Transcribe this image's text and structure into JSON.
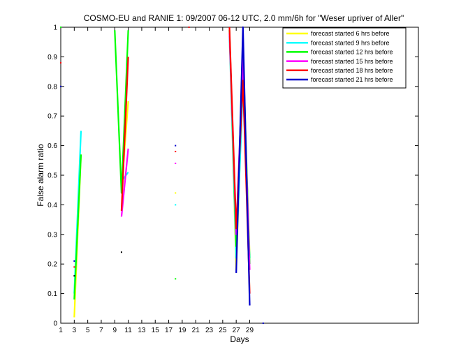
{
  "chart_data": {
    "type": "line",
    "title": "COSMO-EU and RANIE 1: 09/2007 06-12 UTC, 2.0 mm/6h for \"Weser upriver of Aller\"",
    "xlabel": "Days",
    "ylabel": "False alarm ratio",
    "xlim": [
      1,
      54
    ],
    "ylim": [
      0,
      1
    ],
    "xticks": [
      1,
      3,
      5,
      7,
      9,
      11,
      13,
      15,
      17,
      19,
      21,
      23,
      25,
      27,
      29
    ],
    "yticks": [
      0,
      0.1,
      0.2,
      0.3,
      0.4,
      0.5,
      0.6,
      0.7,
      0.8,
      0.9,
      1
    ],
    "legend_position": "top-right",
    "series": [
      {
        "name": "forecast started 6 hrs before",
        "color": "#ffff00",
        "points": [
          [
            3,
            0.02
          ],
          [
            4,
            0.57
          ],
          null,
          [
            10,
            0.45
          ],
          [
            11,
            0.75
          ],
          null,
          [
            26,
            0.99
          ],
          [
            27,
            0.18
          ],
          [
            28,
            0.85
          ],
          [
            29,
            0.23
          ]
        ]
      },
      {
        "name": "forecast started 9 hrs before",
        "color": "#00ffff",
        "points": [
          [
            3,
            0.1
          ],
          [
            4,
            0.65
          ],
          null,
          [
            10,
            0.48
          ],
          [
            11,
            0.51
          ],
          null,
          [
            26,
            0.97
          ],
          [
            27,
            0.22
          ],
          [
            28,
            0.8
          ],
          [
            29,
            0.22
          ]
        ]
      },
      {
        "name": "forecast started 12 hrs before",
        "color": "#00ff00",
        "points": [
          [
            3,
            0.08
          ],
          [
            4,
            0.57
          ],
          null,
          [
            9,
            0.99
          ],
          [
            10,
            0.44
          ],
          [
            11,
            0.99
          ],
          null,
          [
            26,
            0.99
          ],
          [
            27,
            0.26
          ],
          [
            28,
            0.93
          ],
          [
            29,
            0.2
          ]
        ]
      },
      {
        "name": "forecast started 15 hrs before",
        "color": "#ff00ff",
        "points": [
          [
            10,
            0.36
          ],
          [
            11,
            0.59
          ],
          null,
          [
            26,
            0.98
          ],
          [
            27,
            0.3
          ],
          [
            28,
            0.9
          ],
          [
            29,
            0.18
          ]
        ]
      },
      {
        "name": "forecast started 18 hrs before",
        "color": "#ff0000",
        "points": [
          [
            10,
            0.38
          ],
          [
            11,
            0.9
          ],
          null,
          [
            26,
            1.0
          ],
          [
            27,
            0.32
          ],
          [
            28,
            0.82
          ],
          [
            29,
            0.1
          ]
        ]
      },
      {
        "name": "forecast started 21 hrs before",
        "color": "#0000cc",
        "points": [
          [
            27,
            0.17
          ],
          [
            28,
            1.0
          ],
          [
            29,
            0.06
          ]
        ]
      }
    ],
    "isolated_points": [
      {
        "x": 1,
        "y": 0.88,
        "color": "#ff0000"
      },
      {
        "x": 1,
        "y": 0.8,
        "color": "#0000cc"
      },
      {
        "x": 1,
        "y": 1.0,
        "color": "#00ff00"
      },
      {
        "x": 3,
        "y": 0.21,
        "color": "#0000cc"
      },
      {
        "x": 3,
        "y": 0.19,
        "color": "#ff0000"
      },
      {
        "x": 3,
        "y": 0.16,
        "color": "#000000"
      },
      {
        "x": 10,
        "y": 0.24,
        "color": "#000000"
      },
      {
        "x": 18,
        "y": 0.6,
        "color": "#0000cc"
      },
      {
        "x": 18,
        "y": 0.58,
        "color": "#ff0000"
      },
      {
        "x": 18,
        "y": 0.54,
        "color": "#ff00ff"
      },
      {
        "x": 18,
        "y": 0.44,
        "color": "#ffff00"
      },
      {
        "x": 18,
        "y": 0.4,
        "color": "#00ffff"
      },
      {
        "x": 18,
        "y": 0.15,
        "color": "#00ff00"
      },
      {
        "x": 20,
        "y": 1.0,
        "color": "#ff0000"
      },
      {
        "x": 31,
        "y": 0.0,
        "color": "#0000cc"
      }
    ]
  }
}
